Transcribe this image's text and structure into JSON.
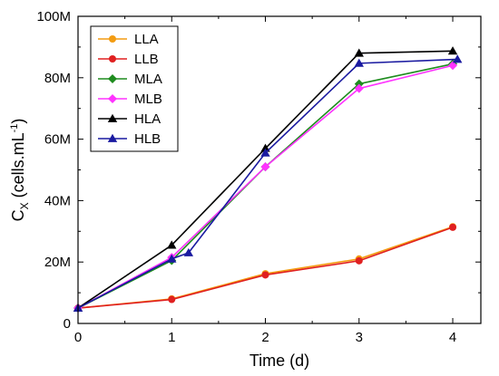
{
  "chart_data": {
    "type": "line",
    "title": "",
    "xlabel": "Time (d)",
    "ylabel": {
      "main": "C",
      "sub": "X",
      "units_prefix": " (cells.mL",
      "units_sup": "-1",
      "units_suffix": ")"
    },
    "xlim": [
      0,
      4.3
    ],
    "ylim": [
      0,
      100000000
    ],
    "xticks": [
      0,
      1,
      2,
      3,
      4
    ],
    "xtick_labels": [
      "0",
      "1",
      "2",
      "3",
      "4"
    ],
    "yticks": [
      0,
      20000000,
      40000000,
      60000000,
      80000000,
      100000000
    ],
    "ytick_labels": [
      "0",
      "20M",
      "40M",
      "60M",
      "80M",
      "100M"
    ],
    "grid": false,
    "legend_position": "top-left",
    "series": [
      {
        "name": "LLA",
        "color": "#f39c12",
        "marker": "circle",
        "x": [
          0,
          1,
          2,
          3,
          4
        ],
        "y": [
          5000000,
          8000000,
          16200000,
          21000000,
          31500000
        ]
      },
      {
        "name": "LLB",
        "color": "#e02020",
        "marker": "circle",
        "x": [
          0,
          1,
          2,
          3,
          4
        ],
        "y": [
          5000000,
          7800000,
          15800000,
          20400000,
          31300000
        ]
      },
      {
        "name": "MLA",
        "color": "#1e8c1e",
        "marker": "diamond",
        "x": [
          0,
          1,
          2,
          3,
          4
        ],
        "y": [
          5000000,
          20500000,
          51000000,
          78000000,
          84500000
        ]
      },
      {
        "name": "MLB",
        "color": "#ff33ff",
        "marker": "diamond",
        "x": [
          0,
          1,
          2,
          3,
          4
        ],
        "y": [
          5000000,
          21500000,
          51000000,
          76500000,
          84000000
        ]
      },
      {
        "name": "HLA",
        "color": "#000000",
        "marker": "triangle",
        "x": [
          0,
          1,
          2,
          3,
          4
        ],
        "y": [
          5000000,
          25500000,
          57000000,
          88000000,
          88700000
        ]
      },
      {
        "name": "HLB",
        "color": "#1a1aa0",
        "marker": "triangle",
        "x": [
          0,
          1,
          1.18,
          2,
          3,
          4.05
        ],
        "y": [
          5000000,
          21000000,
          23000000,
          55500000,
          84700000,
          86000000
        ]
      }
    ]
  }
}
